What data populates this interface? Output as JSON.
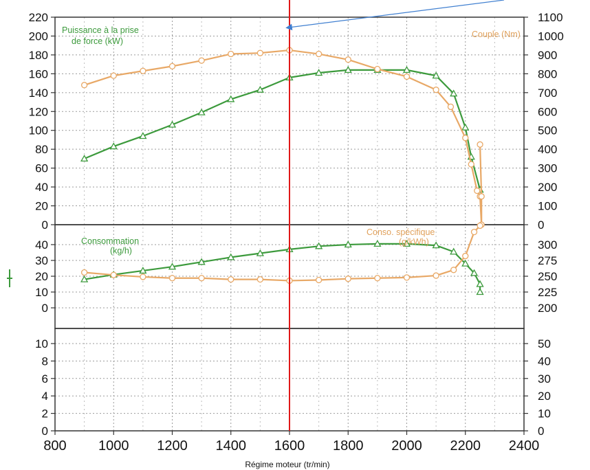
{
  "chart_data": {
    "type": "line",
    "xlabel": "Régime moteur (tr/min)",
    "xlim": [
      800,
      2400
    ],
    "x_ticks": [
      800,
      1000,
      1200,
      1400,
      1600,
      1800,
      2000,
      2200,
      2400
    ],
    "grid": true,
    "marker_line_x": 1600,
    "colors": {
      "green": "#3c9a3c",
      "orange": "#e8a866",
      "red": "#e01818",
      "arrow": "#3f7fd0"
    },
    "panels": [
      {
        "name": "top",
        "left_ticks": [
          0,
          20,
          40,
          60,
          80,
          100,
          120,
          140,
          160,
          180,
          200,
          220
        ],
        "right_ticks": [
          0,
          100,
          200,
          300,
          400,
          500,
          600,
          700,
          800,
          900,
          1000,
          1100
        ],
        "series": [
          {
            "name": "Puissance à la prise de force (kW)",
            "label_lines": [
              "Puissance à la prise",
              "de force (kW)"
            ],
            "axis": "left",
            "color": "green",
            "marker": "triangle",
            "x": [
              900,
              1000,
              1100,
              1200,
              1300,
              1400,
              1500,
              1600,
              1700,
              1800,
              1900,
              2000,
              2100,
              2160,
              2200,
              2220,
              2250
            ],
            "y": [
              70,
              83,
              94,
              106,
              119,
              133,
              143,
              156,
              161,
              164,
              164,
              164,
              158,
              139,
              103,
              72,
              37
            ]
          },
          {
            "name": "Couple (Nm)",
            "label_lines": [
              "Couple (Nm)"
            ],
            "axis": "right",
            "color": "orange",
            "marker": "circle",
            "x": [
              900,
              1000,
              1100,
              1200,
              1300,
              1400,
              1500,
              1600,
              1700,
              1800,
              1900,
              2000,
              2100,
              2150,
              2200,
              2220,
              2240,
              2250,
              2255,
              2255,
              2250
            ],
            "y": [
              740,
              790,
              815,
              840,
              870,
              905,
              910,
              925,
              905,
              875,
              825,
              785,
              715,
              625,
              460,
              320,
              180,
              150,
              0,
              150,
              425
            ]
          }
        ]
      },
      {
        "name": "middle",
        "left_ticks": [
          0,
          10,
          20,
          30,
          40
        ],
        "right_ticks": [
          200,
          225,
          250,
          275,
          300
        ],
        "series": [
          {
            "name": "Consommation (kg/h)",
            "label_lines": [
              "Consommation",
              "(kg/h)"
            ],
            "axis": "left",
            "color": "green",
            "marker": "triangle",
            "x": [
              900,
              1000,
              1100,
              1200,
              1300,
              1400,
              1500,
              1600,
              1700,
              1800,
              1900,
              2000,
              2100,
              2160,
              2200,
              2230,
              2250,
              2250
            ],
            "y": [
              18,
              21,
              23.5,
              26,
              29,
              32,
              34.5,
              37,
              39,
              40,
              40.5,
              40.5,
              39.5,
              35.5,
              28,
              22,
              15,
              10
            ]
          },
          {
            "name": "Conso. spécifique (g/kWh)",
            "label_lines": [
              "Conso. spécifique",
              "(g/kWh)"
            ],
            "axis": "right",
            "color": "orange",
            "marker": "circle",
            "x": [
              900,
              1000,
              1100,
              1200,
              1300,
              1400,
              1500,
              1600,
              1700,
              1800,
              1900,
              2000,
              2100,
              2160,
              2200,
              2230,
              2250
            ],
            "y": [
              256,
              252,
              249,
              247,
              247,
              245,
              245,
              243,
              244,
              246,
              247,
              248,
              251,
              260,
              282,
              320,
              330
            ]
          }
        ]
      },
      {
        "name": "bottom",
        "left_ticks": [
          0,
          2,
          4,
          6,
          8,
          10
        ],
        "right_ticks": [
          0,
          10,
          20,
          30,
          40,
          50
        ],
        "series": []
      }
    ]
  }
}
